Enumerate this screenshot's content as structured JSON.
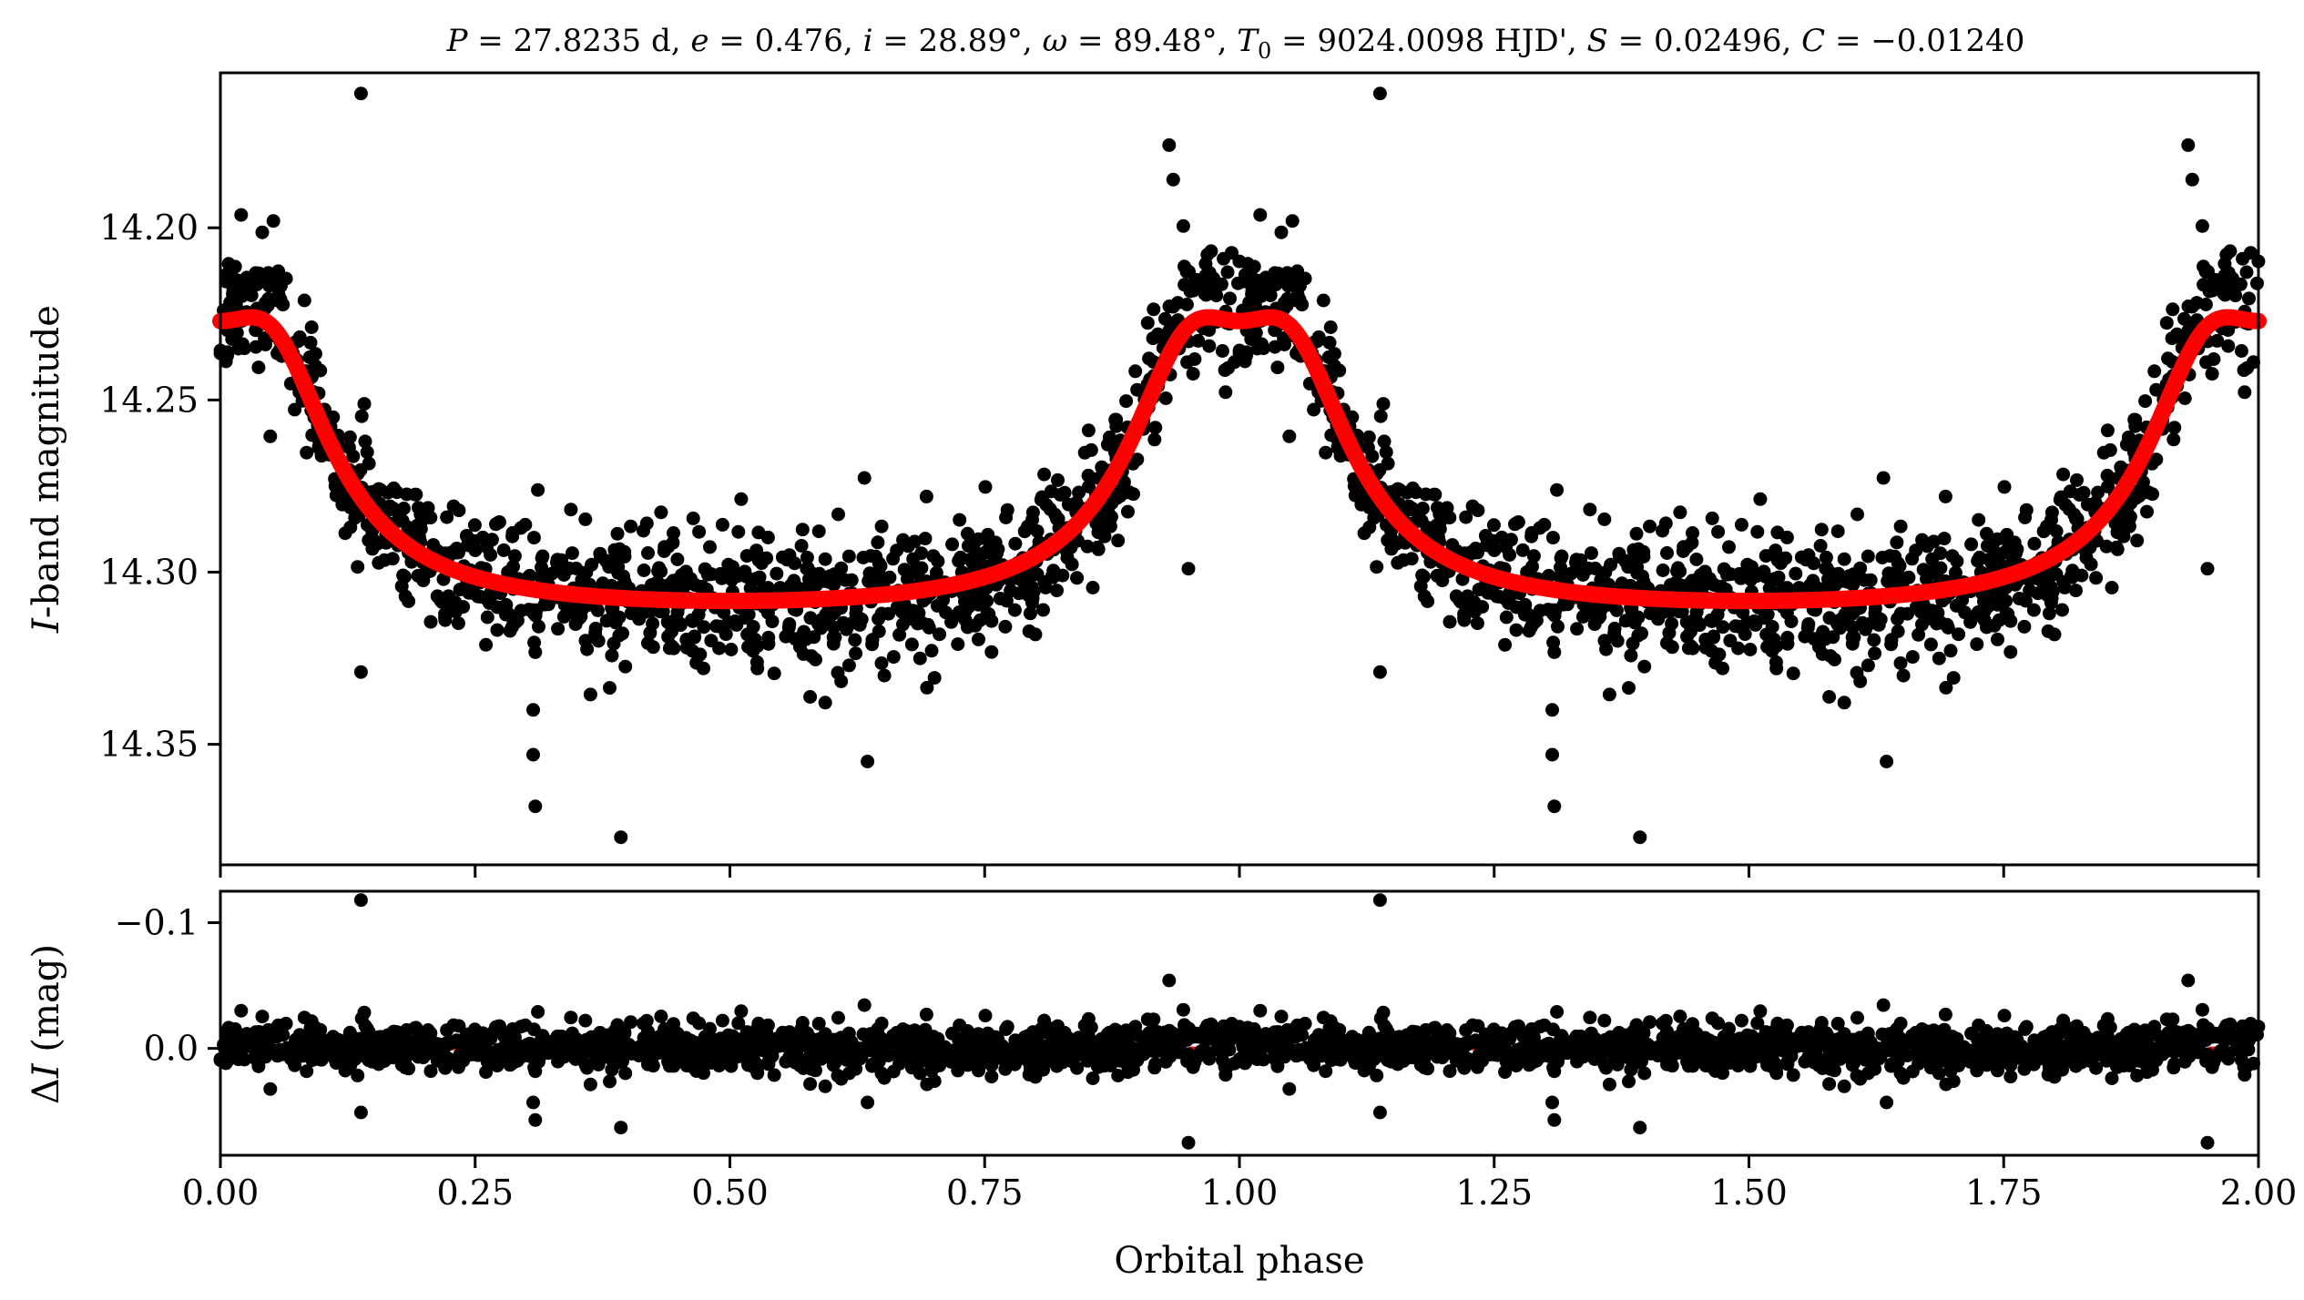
{
  "chart_data": [
    {
      "type": "scatter",
      "panel": "top",
      "title": "P = 27.8235 d, e = 0.476, i = 28.89°, ω = 89.48°, T0 = 9024.0098 HJD', S = 0.02496, C = −0.01240",
      "title_parts": {
        "P": "P",
        "P_val": " = 27.8235 d, ",
        "e": "e",
        "e_val": " = 0.476, ",
        "i": "i",
        "i_val": " = 28.89°, ",
        "w": "ω",
        "w_val": " = 89.48°, ",
        "T": "T",
        "T_sub": "0",
        "T_val": " = 9024.0098 HJD', ",
        "S": "S",
        "S_val": " = 0.02496, ",
        "C": "C",
        "C_val": " = −0.01240"
      },
      "xlabel": "Orbital phase",
      "ylabel_italic": "I",
      "ylabel_rest": "-band magnitude",
      "xlim": [
        0.0,
        2.0
      ],
      "ylim": [
        14.385,
        14.155
      ],
      "y_inverted": true,
      "yticks": [
        "14.20",
        "14.25",
        "14.30",
        "14.35"
      ],
      "ytick_values": [
        14.2,
        14.25,
        14.3,
        14.35
      ],
      "model": {
        "color": "#ff0000",
        "baseline_mag": 14.314,
        "peak_mag": 14.226,
        "dip_mag": 14.262,
        "peak_phases": [
          0.05,
          0.95,
          1.05,
          1.95
        ],
        "peak_width_phase": 0.075
      },
      "points_color": "#000000",
      "outliers": [
        {
          "x": 0.138,
          "y": 14.161
        },
        {
          "x": 1.138,
          "y": 14.161
        },
        {
          "x": 0.052,
          "y": 14.198
        },
        {
          "x": 1.052,
          "y": 14.198
        },
        {
          "x": 0.931,
          "y": 14.176
        },
        {
          "x": 1.931,
          "y": 14.176
        },
        {
          "x": 0.935,
          "y": 14.186
        },
        {
          "x": 1.935,
          "y": 14.186
        },
        {
          "x": 0.138,
          "y": 14.329
        },
        {
          "x": 1.138,
          "y": 14.329
        },
        {
          "x": 0.307,
          "y": 14.34
        },
        {
          "x": 1.307,
          "y": 14.34
        },
        {
          "x": 0.307,
          "y": 14.353
        },
        {
          "x": 1.307,
          "y": 14.353
        },
        {
          "x": 0.309,
          "y": 14.368
        },
        {
          "x": 1.309,
          "y": 14.368
        },
        {
          "x": 0.393,
          "y": 14.377
        },
        {
          "x": 1.393,
          "y": 14.377
        },
        {
          "x": 0.635,
          "y": 14.355
        },
        {
          "x": 1.635,
          "y": 14.355
        },
        {
          "x": 0.95,
          "y": 14.299
        },
        {
          "x": 1.95,
          "y": 14.299
        }
      ]
    },
    {
      "type": "scatter",
      "panel": "bottom",
      "xlabel": "Orbital phase",
      "ylabel_delta": "Δ",
      "ylabel_italic": "I",
      "ylabel_rest": " (mag)",
      "xlim": [
        0.0,
        2.0
      ],
      "ylim": [
        0.085,
        -0.125
      ],
      "y_inverted": true,
      "yticks": [
        "−0.1",
        "0.0"
      ],
      "ytick_values": [
        -0.1,
        0.0
      ],
      "xticks": [
        "0.00",
        "0.25",
        "0.50",
        "0.75",
        "1.00",
        "1.25",
        "1.50",
        "1.75",
        "2.00"
      ],
      "xtick_values": [
        0.0,
        0.25,
        0.5,
        0.75,
        1.0,
        1.25,
        1.5,
        1.75,
        2.0
      ],
      "zero_line": {
        "y": 0.0,
        "color": "#ff0000",
        "style": "dashed"
      },
      "points_color": "#000000",
      "outliers": [
        {
          "x": 0.138,
          "y": -0.118
        },
        {
          "x": 1.138,
          "y": -0.118
        },
        {
          "x": 0.931,
          "y": -0.054
        },
        {
          "x": 1.931,
          "y": -0.054
        },
        {
          "x": 0.138,
          "y": 0.051
        },
        {
          "x": 1.138,
          "y": 0.051
        },
        {
          "x": 0.307,
          "y": 0.043
        },
        {
          "x": 1.307,
          "y": 0.043
        },
        {
          "x": 0.309,
          "y": 0.057
        },
        {
          "x": 1.309,
          "y": 0.057
        },
        {
          "x": 0.393,
          "y": 0.063
        },
        {
          "x": 1.393,
          "y": 0.063
        },
        {
          "x": 0.635,
          "y": 0.043
        },
        {
          "x": 1.635,
          "y": 0.043
        },
        {
          "x": 0.95,
          "y": 0.075
        },
        {
          "x": 1.95,
          "y": 0.075
        }
      ]
    }
  ]
}
